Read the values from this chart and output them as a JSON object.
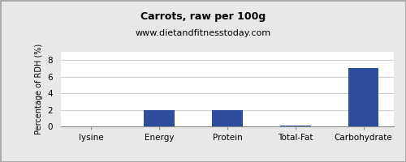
{
  "title": "Carrots, raw per 100g",
  "subtitle": "www.dietandfitnesstoday.com",
  "categories": [
    "lysine",
    "Energy",
    "Protein",
    "Total-Fat",
    "Carbohydrate"
  ],
  "values": [
    0.0,
    2.0,
    2.0,
    0.1,
    7.0
  ],
  "bar_color": "#2e4d9e",
  "ylabel": "Percentage of RDH (%)",
  "ylim": [
    0,
    9
  ],
  "yticks": [
    0,
    2,
    4,
    6,
    8
  ],
  "background_color": "#e8e8e8",
  "plot_bg_color": "#ffffff",
  "title_fontsize": 9,
  "subtitle_fontsize": 8,
  "label_fontsize": 7,
  "tick_fontsize": 7.5,
  "bar_width": 0.45
}
